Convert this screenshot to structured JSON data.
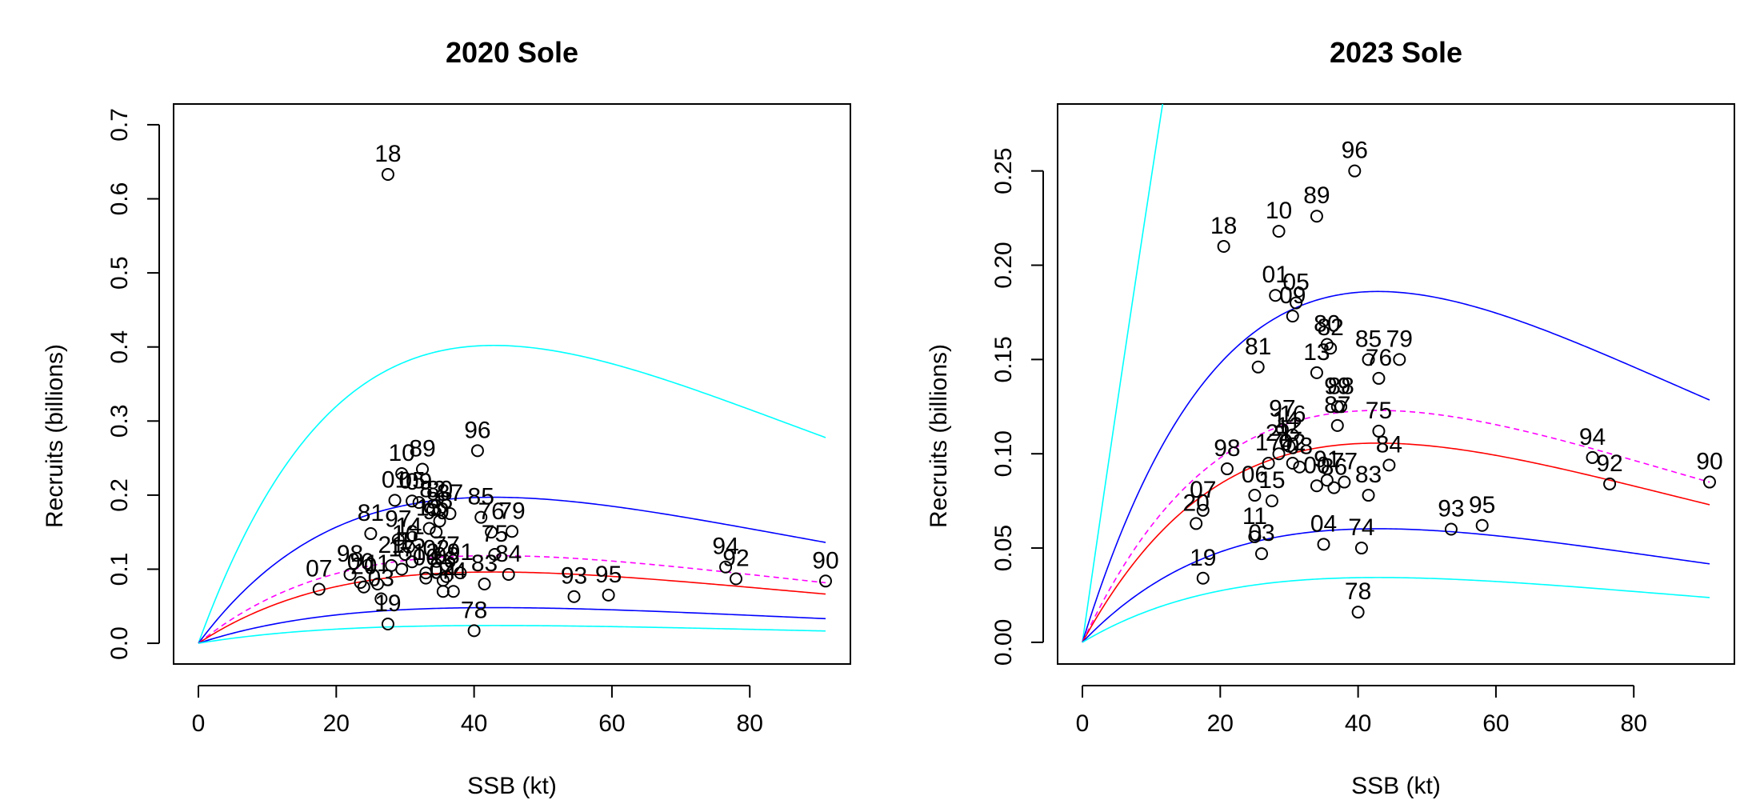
{
  "colors": {
    "points": "#000000",
    "ci95": "#00ffff",
    "ci50": "#0000ff",
    "median": "#ff0000",
    "mean": "#ff00ff"
  },
  "chart_data": [
    {
      "type": "scatter",
      "title": "2020 Sole",
      "xlabel": "SSB (kt)",
      "ylabel": "Recruits (billions)",
      "xlim": [
        -3.6,
        94.6
      ],
      "ylim": [
        -0.028,
        0.728
      ],
      "xticks": [
        "0",
        "20",
        "40",
        "60",
        "80"
      ],
      "yticks": [
        "0.0",
        "0.1",
        "0.2",
        "0.3",
        "0.4",
        "0.5",
        "0.6",
        "0.7"
      ],
      "grid": false,
      "ytick_values": [
        0,
        0.1,
        0.2,
        0.3,
        0.4,
        0.5,
        0.6,
        0.7
      ],
      "xtick_values": [
        0,
        20,
        40,
        60,
        80
      ],
      "points": [
        {
          "label": "18",
          "x": 27.5,
          "y": 0.633
        },
        {
          "label": "96",
          "x": 40.5,
          "y": 0.26
        },
        {
          "label": "10",
          "x": 29.5,
          "y": 0.229
        },
        {
          "label": "89",
          "x": 32.5,
          "y": 0.235
        },
        {
          "label": "01",
          "x": 28.5,
          "y": 0.193
        },
        {
          "label": "05",
          "x": 31.0,
          "y": 0.192
        },
        {
          "label": "09",
          "x": 32.0,
          "y": 0.19
        },
        {
          "label": "81",
          "x": 25.0,
          "y": 0.148
        },
        {
          "label": "80",
          "x": 35.0,
          "y": 0.18
        },
        {
          "label": "85",
          "x": 41.0,
          "y": 0.17
        },
        {
          "label": "79",
          "x": 45.5,
          "y": 0.151
        },
        {
          "label": "76",
          "x": 42.5,
          "y": 0.15
        },
        {
          "label": "97",
          "x": 29.0,
          "y": 0.14
        },
        {
          "label": "99",
          "x": 34.5,
          "y": 0.15
        },
        {
          "label": "75",
          "x": 43.0,
          "y": 0.12
        },
        {
          "label": "84",
          "x": 45.0,
          "y": 0.093
        },
        {
          "label": "83",
          "x": 41.5,
          "y": 0.08
        },
        {
          "label": "98",
          "x": 22.0,
          "y": 0.093
        },
        {
          "label": "07",
          "x": 17.5,
          "y": 0.073
        },
        {
          "label": "06",
          "x": 23.5,
          "y": 0.082
        },
        {
          "label": "11",
          "x": 26.0,
          "y": 0.08
        },
        {
          "label": "03",
          "x": 26.5,
          "y": 0.06
        },
        {
          "label": "19",
          "x": 27.5,
          "y": 0.026
        },
        {
          "label": "20",
          "x": 24.0,
          "y": 0.076
        },
        {
          "label": "74",
          "x": 37.0,
          "y": 0.07
        },
        {
          "label": "04",
          "x": 35.5,
          "y": 0.07
        },
        {
          "label": "78",
          "x": 40.0,
          "y": 0.017
        },
        {
          "label": "93",
          "x": 54.5,
          "y": 0.063
        },
        {
          "label": "95",
          "x": 59.5,
          "y": 0.065
        },
        {
          "label": "94",
          "x": 76.5,
          "y": 0.103
        },
        {
          "label": "92",
          "x": 78.0,
          "y": 0.087
        },
        {
          "label": "90",
          "x": 91.0,
          "y": 0.084
        },
        {
          "label": "14",
          "x": 30.5,
          "y": 0.13
        },
        {
          "label": "13",
          "x": 33.5,
          "y": 0.155
        },
        {
          "label": "15",
          "x": 31.0,
          "y": 0.11
        },
        {
          "label": "16",
          "x": 30.0,
          "y": 0.12
        },
        {
          "label": "17",
          "x": 29.5,
          "y": 0.1
        },
        {
          "label": "12",
          "x": 33.0,
          "y": 0.095
        },
        {
          "label": "02",
          "x": 34.5,
          "y": 0.1
        },
        {
          "label": "08",
          "x": 36.0,
          "y": 0.09
        },
        {
          "label": "00",
          "x": 33.0,
          "y": 0.088
        },
        {
          "label": "86",
          "x": 35.5,
          "y": 0.085
        },
        {
          "label": "88",
          "x": 35.0,
          "y": 0.165
        },
        {
          "label": "87",
          "x": 36.5,
          "y": 0.175
        },
        {
          "label": "82",
          "x": 34.0,
          "y": 0.18
        },
        {
          "label": "77",
          "x": 36.0,
          "y": 0.105
        },
        {
          "label": "91",
          "x": 38.0,
          "y": 0.095
        },
        {
          "label": "21",
          "x": 28.0,
          "y": 0.105
        }
      ],
      "curves": [
        {
          "color": "#00ffff",
          "dash": false,
          "a": 0.0255,
          "b": 0.02333
        },
        {
          "color": "#0000ff",
          "dash": false,
          "a": 0.0125,
          "b": 0.02333
        },
        {
          "color": "#ff00ff",
          "dash": true,
          "a": 0.0075,
          "b": 0.02333
        },
        {
          "color": "#ff0000",
          "dash": false,
          "a": 0.0061,
          "b": 0.02333
        },
        {
          "color": "#0000ff",
          "dash": false,
          "a": 0.00305,
          "b": 0.02333
        },
        {
          "color": "#00ffff",
          "dash": false,
          "a": 0.00152,
          "b": 0.02333
        }
      ]
    },
    {
      "type": "scatter",
      "title": "2023 Sole",
      "xlabel": "SSB (kt)",
      "ylabel": "Recruits (billions)",
      "xlim": [
        -3.6,
        94.6
      ],
      "ylim": [
        -0.0115,
        0.2855
      ],
      "xticks": [
        "0",
        "20",
        "40",
        "60",
        "80"
      ],
      "yticks": [
        "0.00",
        "0.05",
        "0.10",
        "0.15",
        "0.20",
        "0.25"
      ],
      "grid": false,
      "ytick_values": [
        0,
        0.05,
        0.1,
        0.15,
        0.2,
        0.25
      ],
      "xtick_values": [
        0,
        20,
        40,
        60,
        80
      ],
      "points": [
        {
          "label": "96",
          "x": 39.5,
          "y": 0.25
        },
        {
          "label": "89",
          "x": 34.0,
          "y": 0.226
        },
        {
          "label": "10",
          "x": 28.5,
          "y": 0.218
        },
        {
          "label": "18",
          "x": 20.5,
          "y": 0.21
        },
        {
          "label": "01",
          "x": 28.0,
          "y": 0.184
        },
        {
          "label": "05",
          "x": 31.0,
          "y": 0.18
        },
        {
          "label": "09",
          "x": 30.5,
          "y": 0.173
        },
        {
          "label": "80",
          "x": 35.5,
          "y": 0.158
        },
        {
          "label": "81",
          "x": 25.5,
          "y": 0.146
        },
        {
          "label": "85",
          "x": 41.5,
          "y": 0.15
        },
        {
          "label": "79",
          "x": 46.0,
          "y": 0.15
        },
        {
          "label": "76",
          "x": 43.0,
          "y": 0.14
        },
        {
          "label": "13",
          "x": 34.0,
          "y": 0.143
        },
        {
          "label": "99",
          "x": 37.0,
          "y": 0.125
        },
        {
          "label": "88",
          "x": 37.5,
          "y": 0.125
        },
        {
          "label": "97",
          "x": 29.0,
          "y": 0.113
        },
        {
          "label": "75",
          "x": 43.0,
          "y": 0.112
        },
        {
          "label": "84",
          "x": 44.5,
          "y": 0.094
        },
        {
          "label": "83",
          "x": 41.5,
          "y": 0.078
        },
        {
          "label": "98",
          "x": 21.0,
          "y": 0.092
        },
        {
          "label": "07",
          "x": 17.5,
          "y": 0.07
        },
        {
          "label": "20",
          "x": 16.5,
          "y": 0.063
        },
        {
          "label": "19",
          "x": 17.5,
          "y": 0.034
        },
        {
          "label": "06",
          "x": 25.0,
          "y": 0.078
        },
        {
          "label": "11",
          "x": 25.0,
          "y": 0.056
        },
        {
          "label": "03",
          "x": 26.0,
          "y": 0.047
        },
        {
          "label": "00",
          "x": 34.0,
          "y": 0.083
        },
        {
          "label": "86",
          "x": 36.5,
          "y": 0.082
        },
        {
          "label": "74",
          "x": 40.5,
          "y": 0.05
        },
        {
          "label": "04",
          "x": 35.0,
          "y": 0.052
        },
        {
          "label": "78",
          "x": 40.0,
          "y": 0.016
        },
        {
          "label": "93",
          "x": 53.5,
          "y": 0.06
        },
        {
          "label": "95",
          "x": 58.0,
          "y": 0.062
        },
        {
          "label": "94",
          "x": 74.0,
          "y": 0.098
        },
        {
          "label": "92",
          "x": 76.5,
          "y": 0.084
        },
        {
          "label": "90",
          "x": 91.0,
          "y": 0.085
        },
        {
          "label": "17",
          "x": 27.0,
          "y": 0.095
        },
        {
          "label": "16",
          "x": 30.5,
          "y": 0.11
        },
        {
          "label": "14",
          "x": 29.5,
          "y": 0.107
        },
        {
          "label": "21",
          "x": 28.5,
          "y": 0.1
        },
        {
          "label": "12",
          "x": 30.0,
          "y": 0.104
        },
        {
          "label": "02",
          "x": 30.5,
          "y": 0.095
        },
        {
          "label": "08",
          "x": 31.5,
          "y": 0.093
        },
        {
          "label": "15",
          "x": 27.5,
          "y": 0.075
        },
        {
          "label": "82",
          "x": 36.0,
          "y": 0.156
        },
        {
          "label": "87",
          "x": 37.0,
          "y": 0.115
        },
        {
          "label": "77",
          "x": 38.0,
          "y": 0.085
        },
        {
          "label": "91",
          "x": 35.5,
          "y": 0.086
        }
      ],
      "curves": [
        {
          "color": "#00ffff",
          "dash": false,
          "a": 0.0255,
          "b": 0.00333
        },
        {
          "color": "#0000ff",
          "dash": false,
          "a": 0.0118,
          "b": 0.02333
        },
        {
          "color": "#ff00ff",
          "dash": true,
          "a": 0.0078,
          "b": 0.02333
        },
        {
          "color": "#ff0000",
          "dash": false,
          "a": 0.0067,
          "b": 0.02333
        },
        {
          "color": "#0000ff",
          "dash": false,
          "a": 0.00382,
          "b": 0.02333
        },
        {
          "color": "#00ffff",
          "dash": false,
          "a": 0.00218,
          "b": 0.02333
        }
      ]
    }
  ]
}
